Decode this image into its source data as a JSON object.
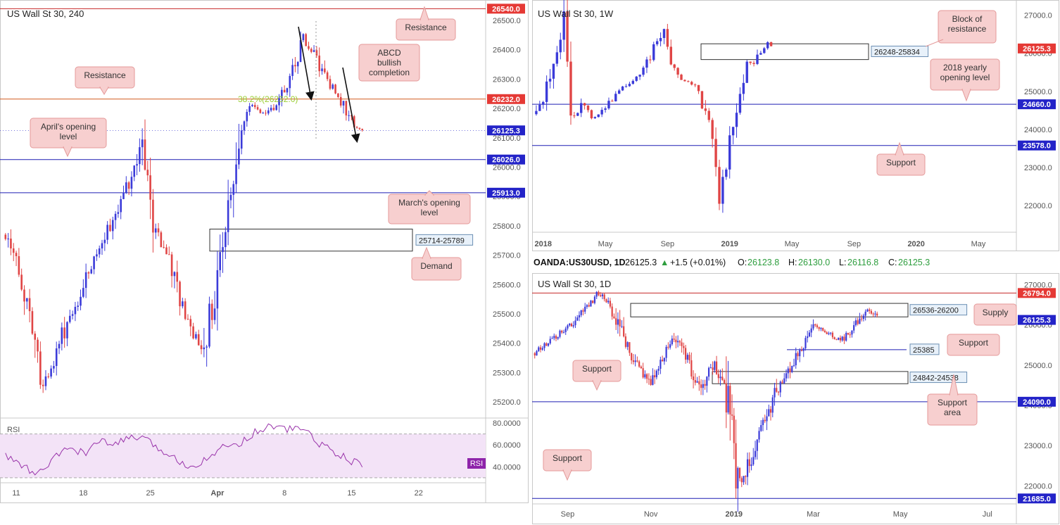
{
  "colors": {
    "bull": "#3b3bd9",
    "bear": "#e04545",
    "blue_line": "#1f1fb4",
    "red_line": "#c62828",
    "callout_bg": "#f7cfcf",
    "callout_border": "#e49a9a",
    "rsi_line": "#9933aa",
    "rsi_band": "#f3e3f7"
  },
  "panels": {
    "left": {
      "title": "US Wall St 30, 240",
      "ylim": [
        25150,
        26560
      ],
      "x_ticks": [
        {
          "i": 5,
          "label": "11"
        },
        {
          "i": 30,
          "label": "18"
        },
        {
          "i": 55,
          "label": "25"
        },
        {
          "i": 80,
          "label": "Apr"
        },
        {
          "i": 105,
          "label": "8"
        },
        {
          "i": 130,
          "label": "15"
        },
        {
          "i": 155,
          "label": "22"
        }
      ],
      "n_slots": 180,
      "y_ticks": [
        "26500.0",
        "26400.0",
        "26300.0",
        "26200.0",
        "26100.0",
        "26000.0",
        "25900.0",
        "25800.0",
        "25700.0",
        "25600.0",
        "25500.0",
        "25400.0",
        "25300.0",
        "25200.0"
      ],
      "price_tags": [
        {
          "label": "26540.0",
          "value": 26540,
          "color": "#e53935"
        },
        {
          "label": "26232.0",
          "value": 26232,
          "color": "#e53935"
        },
        {
          "label": "26125.3",
          "value": 26125.3,
          "color": "#2323c8"
        },
        {
          "label": "26026.0",
          "value": 26026,
          "color": "#2323c8"
        },
        {
          "label": "25913.0",
          "value": 25913,
          "color": "#2323c8"
        }
      ],
      "fib_label": "38.2%(26232.0)",
      "zone_label": "25714-25789",
      "rsi": {
        "label": "RSI",
        "badge": "RSI",
        "ticks": [
          "80.0000",
          "60.0000",
          "40.0000"
        ],
        "ylim": [
          28,
          82
        ],
        "band": [
          30,
          70
        ]
      },
      "callouts": {
        "resistance_top": "Resistance",
        "abcd": "ABCD bullish completion",
        "resistance_left": "Resistance",
        "april": "April's opening level",
        "march": "March's opening level",
        "demand": "Demand"
      }
    },
    "weekly": {
      "title": "US Wall St 30, 1W",
      "ylim": [
        21300,
        27250
      ],
      "x_ticks": [
        {
          "i": 3,
          "label": "2018"
        },
        {
          "i": 21,
          "label": "May"
        },
        {
          "i": 39,
          "label": "Sep"
        },
        {
          "i": 57,
          "label": "2019"
        },
        {
          "i": 75,
          "label": "May"
        },
        {
          "i": 93,
          "label": "Sep"
        },
        {
          "i": 111,
          "label": "2020"
        },
        {
          "i": 129,
          "label": "May"
        }
      ],
      "n_slots": 140,
      "y_ticks": [
        "27000.0",
        "26000.0",
        "25000.0",
        "24000.0",
        "23000.0",
        "22000.0"
      ],
      "price_tags": [
        {
          "label": "26125.3",
          "value": 26125.3,
          "color": "#e53935"
        },
        {
          "label": "24660.0",
          "value": 24660,
          "color": "#2323c8"
        },
        {
          "label": "23578.0",
          "value": 23578,
          "color": "#2323c8"
        }
      ],
      "zone_label": "26248-25834",
      "callouts": {
        "block": "Block of resistance",
        "yearly": "2018 yearly opening level",
        "support": "Support"
      }
    },
    "daily": {
      "title": "US Wall St 30, 1D",
      "ylim": [
        21550,
        27150
      ],
      "x_ticks": [
        {
          "i": 18,
          "label": "Sep"
        },
        {
          "i": 61,
          "label": "Nov"
        },
        {
          "i": 104,
          "label": "2019"
        },
        {
          "i": 145,
          "label": "Mar"
        },
        {
          "i": 190,
          "label": "May"
        },
        {
          "i": 235,
          "label": "Jul"
        }
      ],
      "n_slots": 250,
      "y_ticks": [
        "27000.0",
        "26000.0",
        "25000.0",
        "24000.0",
        "23000.0",
        "22000.0"
      ],
      "price_tags": [
        {
          "label": "26794.0",
          "value": 26794,
          "color": "#e53935"
        },
        {
          "label": "26125.3",
          "value": 26125.3,
          "color": "#2323c8"
        },
        {
          "label": "24090.0",
          "value": 24090,
          "color": "#2323c8"
        },
        {
          "label": "21685.0",
          "value": 21685,
          "color": "#2323c8"
        }
      ],
      "zone_labels": {
        "supply": "26536-26200",
        "support": "25385",
        "support_area": "24842-24538"
      },
      "callouts": {
        "supply": "Supply",
        "support_right": "Support",
        "support_left": "Support",
        "support_area": "Support area",
        "support_bottom": "Support"
      }
    }
  },
  "ohlc": {
    "symbol": "OANDA:US30USD, 1D",
    "close": "26125.3",
    "change": "+1.5 (+0.01%)",
    "o_label": "O:",
    "o": "26123.8",
    "h_label": "H:",
    "h": "26130.0",
    "l_label": "L:",
    "l": "26116.8",
    "c_label": "C:",
    "c": "26125.3",
    "arrow": "▲"
  },
  "chart_data": [
    {
      "type": "line",
      "title": "US Wall St 30, 240",
      "x_ticks": [
        "11",
        "18",
        "25",
        "Apr",
        "8",
        "15",
        "22"
      ],
      "ylim": [
        25150,
        26560
      ],
      "series": [
        {
          "values": [
            25770,
            25650,
            25480,
            25250,
            25350,
            25480,
            25560,
            25680,
            25760,
            25860,
            25950,
            26060,
            25800,
            25700,
            25560,
            25440,
            25380,
            25600,
            25860,
            26140,
            26210,
            26180,
            26220,
            26320,
            26440,
            26380,
            26290,
            26240,
            26140,
            26125
          ]
        }
      ],
      "levels": {
        "resistance": [
          26540,
          26232
        ],
        "support": [
          26026,
          25913
        ],
        "demand": [
          25714,
          25789
        ]
      }
    },
    {
      "type": "line",
      "title": "US Wall St 30, 1W",
      "x_ticks": [
        "2018",
        "May",
        "Sep",
        "2019",
        "May",
        "Sep",
        "2020",
        "May"
      ],
      "ylim": [
        21300,
        27250
      ],
      "series": [
        {
          "values": [
            24400,
            24900,
            25800,
            26600,
            24200,
            24700,
            24300,
            24400,
            24700,
            25000,
            25200,
            25400,
            25700,
            26200,
            26800,
            25600,
            25300,
            25200,
            24900,
            23900,
            22400,
            23500,
            24700,
            25600,
            25850,
            26300,
            26125
          ]
        }
      ],
      "levels": {
        "block_of_resistance": [
          25834,
          26248
        ],
        "yearly_open": 24660,
        "support": 23578
      }
    },
    {
      "type": "line",
      "title": "US Wall St 30, 1D",
      "x_ticks": [
        "Sep",
        "Nov",
        "2019",
        "Mar",
        "May",
        "Jul"
      ],
      "ylim": [
        21550,
        27150
      ],
      "series": [
        {
          "values": [
            25300,
            25550,
            25800,
            26050,
            26400,
            26790,
            26500,
            25600,
            25000,
            24500,
            25200,
            25700,
            25100,
            24400,
            25000,
            24300,
            22000,
            22700,
            23600,
            24400,
            24900,
            25500,
            26000,
            25800,
            25600,
            25900,
            26400,
            26125
          ]
        }
      ],
      "levels": {
        "supply": [
          26200,
          26536
        ],
        "support": [
          25385,
          24090,
          21685
        ],
        "support_area": [
          24538,
          24842
        ]
      }
    }
  ]
}
